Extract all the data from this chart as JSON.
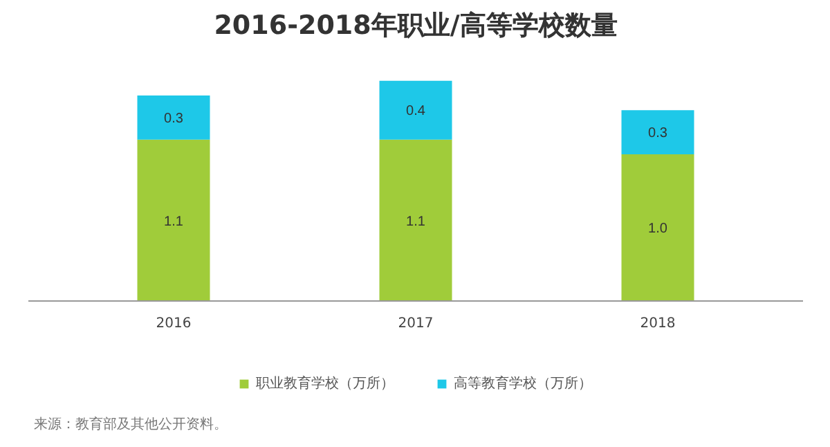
{
  "chart_data": {
    "type": "bar",
    "title": "2016-2018年职业/高等学校数量",
    "categories": [
      "2016",
      "2017",
      "2018"
    ],
    "stacked": true,
    "legend": "bottom",
    "series": [
      {
        "name": "职业教育学校（万所）",
        "color": "#a0cc3a",
        "values": [
          1.1,
          1.1,
          1.0
        ],
        "value_labels": [
          "1.1",
          "1.1",
          "1.0"
        ]
      },
      {
        "name": "高等教育学校（万所）",
        "color": "#1ec8e8",
        "values": [
          0.3,
          0.4,
          0.3
        ],
        "value_labels": [
          "0.3",
          "0.4",
          "0.3"
        ]
      }
    ],
    "annotations": [
      "来源：教育部及其他公开资料。"
    ]
  }
}
